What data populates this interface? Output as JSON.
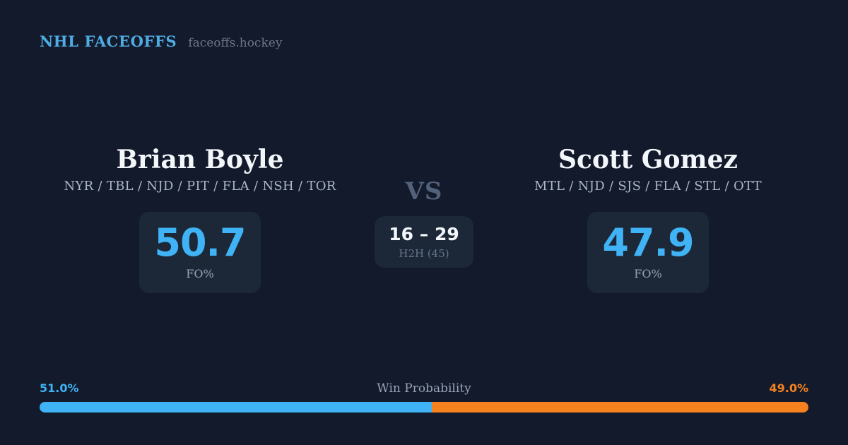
{
  "header": {
    "brand": "NHL FACEOFFS",
    "site": "faceoffs.hockey"
  },
  "players": {
    "left": {
      "name": "Brian Boyle",
      "teams": "NYR / TBL / NJD / PIT / FLA / NSH / TOR",
      "fo_pct": "50.7",
      "fo_label": "FO%"
    },
    "right": {
      "name": "Scott Gomez",
      "teams": "MTL / NJD / SJS / FLA / STL / OTT",
      "fo_pct": "47.9",
      "fo_label": "FO%"
    }
  },
  "center": {
    "vs": "VS",
    "h2h_score": "16 – 29",
    "h2h_label": "H2H (45)"
  },
  "win_probability": {
    "label": "Win Probability",
    "left_pct": "51.0%",
    "right_pct": "49.0%",
    "left_value": 51.0,
    "right_value": 49.0
  },
  "colors": {
    "background": "#131A2B",
    "card_background": "#1C2737",
    "accent_blue": "#3FB3F5",
    "accent_orange": "#F5821F",
    "brand_blue": "#4FACE3",
    "name_text": "#F3F6FA",
    "team_text": "#A9B5C9",
    "vs_text": "#53617B",
    "muted_text": "#97A3B7"
  },
  "chart_data": {
    "type": "bar",
    "title": "Win Probability",
    "orientation": "horizontal-stacked",
    "categories": [
      "Brian Boyle",
      "Scott Gomez"
    ],
    "values": [
      51.0,
      49.0
    ],
    "unit": "%",
    "xlim": [
      0,
      100
    ],
    "colors": [
      "#3FB3F5",
      "#F5821F"
    ],
    "annotations": [
      "51.0%",
      "49.0%"
    ],
    "supporting_stats": {
      "fo_pct": {
        "Brian Boyle": 50.7,
        "Scott Gomez": 47.9
      },
      "head_to_head": {
        "score": "16 – 29",
        "total_faceoffs": 45
      }
    }
  }
}
